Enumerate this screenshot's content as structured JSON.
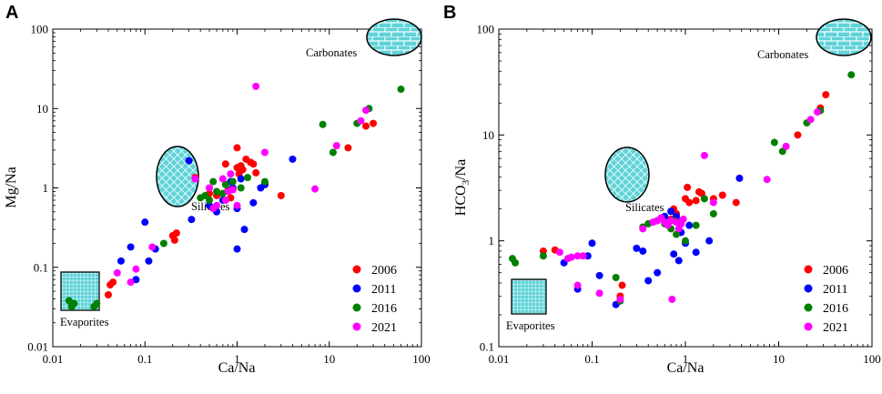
{
  "chart_data": [
    {
      "type": "scatter",
      "panel": "A",
      "xlabel": "Ca/Na",
      "ylabel": "Mg/Na",
      "xscale": "log",
      "yscale": "log",
      "xlim": [
        0.01,
        100
      ],
      "ylim": [
        0.01,
        100
      ],
      "xticks": [
        "0.01",
        "0.1",
        "1",
        "10",
        "100"
      ],
      "yticks": [
        "0.01",
        "0.1",
        "1",
        "10",
        "100"
      ],
      "legend_position": "bottom-right",
      "regions": [
        {
          "label": "Carbonates",
          "shape": "ellipse",
          "x": 60,
          "y": 60
        },
        {
          "label": "Silicates",
          "shape": "ellipse",
          "x": 0.25,
          "y": 1.4
        },
        {
          "label": "Evaporites",
          "shape": "square",
          "x": 0.021,
          "y": 0.045
        }
      ],
      "series": [
        {
          "name": "2006",
          "color": "#ff0000",
          "points": [
            [
              0.04,
              0.045
            ],
            [
              0.042,
              0.06
            ],
            [
              0.045,
              0.065
            ],
            [
              0.2,
              0.25
            ],
            [
              0.21,
              0.22
            ],
            [
              0.22,
              0.27
            ],
            [
              0.35,
              1.35
            ],
            [
              0.5,
              0.85
            ],
            [
              0.6,
              0.8
            ],
            [
              0.75,
              2.0
            ],
            [
              0.8,
              0.95
            ],
            [
              0.85,
              0.75
            ],
            [
              1.0,
              3.2
            ],
            [
              1.0,
              1.8
            ],
            [
              1.05,
              1.5
            ],
            [
              1.1,
              1.9
            ],
            [
              1.15,
              1.7
            ],
            [
              1.25,
              2.3
            ],
            [
              1.4,
              2.1
            ],
            [
              1.5,
              2.0
            ],
            [
              1.6,
              1.55
            ],
            [
              2.0,
              1.1
            ],
            [
              3.0,
              0.8
            ],
            [
              16,
              3.2
            ],
            [
              25,
              6.0
            ],
            [
              30,
              6.5
            ]
          ]
        },
        {
          "name": "2011",
          "color": "#0000ff",
          "points": [
            [
              0.055,
              0.12
            ],
            [
              0.07,
              0.18
            ],
            [
              0.08,
              0.07
            ],
            [
              0.1,
              0.37
            ],
            [
              0.11,
              0.12
            ],
            [
              0.13,
              0.17
            ],
            [
              0.3,
              2.2
            ],
            [
              0.32,
              0.4
            ],
            [
              0.5,
              0.6
            ],
            [
              0.6,
              0.5
            ],
            [
              0.7,
              0.7
            ],
            [
              0.85,
              1.2
            ],
            [
              0.9,
              1.0
            ],
            [
              1.0,
              0.55
            ],
            [
              1.0,
              0.17
            ],
            [
              1.1,
              1.3
            ],
            [
              1.2,
              0.3
            ],
            [
              1.5,
              0.65
            ],
            [
              1.8,
              1.0
            ],
            [
              2.0,
              1.1
            ],
            [
              4.0,
              2.3
            ]
          ]
        },
        {
          "name": "2016",
          "color": "#008000",
          "points": [
            [
              0.015,
              0.038
            ],
            [
              0.016,
              0.032
            ],
            [
              0.017,
              0.035
            ],
            [
              0.028,
              0.032
            ],
            [
              0.03,
              0.035
            ],
            [
              0.16,
              0.2
            ],
            [
              0.4,
              0.75
            ],
            [
              0.45,
              0.8
            ],
            [
              0.5,
              0.7
            ],
            [
              0.55,
              1.2
            ],
            [
              0.6,
              0.9
            ],
            [
              0.7,
              0.85
            ],
            [
              0.75,
              1.1
            ],
            [
              0.9,
              1.2
            ],
            [
              1.1,
              1.0
            ],
            [
              1.3,
              1.35
            ],
            [
              2.0,
              1.2
            ],
            [
              8.5,
              6.3
            ],
            [
              11,
              2.8
            ],
            [
              20,
              6.5
            ],
            [
              27,
              10
            ],
            [
              60,
              17.5
            ]
          ]
        },
        {
          "name": "2021",
          "color": "#ff00ff",
          "points": [
            [
              0.05,
              0.085
            ],
            [
              0.07,
              0.065
            ],
            [
              0.08,
              0.095
            ],
            [
              0.12,
              0.18
            ],
            [
              0.35,
              1.3
            ],
            [
              0.5,
              1.0
            ],
            [
              0.55,
              0.55
            ],
            [
              0.6,
              0.6
            ],
            [
              0.7,
              1.3
            ],
            [
              0.75,
              0.7
            ],
            [
              0.8,
              0.9
            ],
            [
              0.85,
              1.5
            ],
            [
              0.9,
              0.95
            ],
            [
              1.0,
              0.6
            ],
            [
              1.6,
              19
            ],
            [
              2.0,
              2.8
            ],
            [
              7.0,
              0.97
            ],
            [
              12,
              3.4
            ],
            [
              22,
              7.0
            ],
            [
              25,
              9.5
            ]
          ]
        }
      ]
    },
    {
      "type": "scatter",
      "panel": "B",
      "xlabel": "Ca/Na",
      "ylabel": "HCO3/Na",
      "ylabel_main": "HCO",
      "ylabel_sub": "3",
      "ylabel_tail": "/Na",
      "xscale": "log",
      "yscale": "log",
      "xlim": [
        0.01,
        100
      ],
      "ylim": [
        0.1,
        100
      ],
      "xticks": [
        "0.01",
        "0.1",
        "1",
        "10",
        "100"
      ],
      "yticks": [
        "0.1",
        "1",
        "10",
        "100"
      ],
      "legend_position": "bottom-right",
      "regions": [
        {
          "label": "Carbonates",
          "shape": "ellipse",
          "x": 60,
          "y": 60
        },
        {
          "label": "Silicates",
          "shape": "ellipse",
          "x": 0.4,
          "y": 5.0
        },
        {
          "label": "Evaporites",
          "shape": "square",
          "x": 0.023,
          "y": 0.25
        }
      ],
      "series": [
        {
          "name": "2006",
          "color": "#ff0000",
          "points": [
            [
              0.03,
              0.8
            ],
            [
              0.04,
              0.82
            ],
            [
              0.2,
              0.3
            ],
            [
              0.21,
              0.38
            ],
            [
              0.7,
              1.6
            ],
            [
              0.75,
              2.0
            ],
            [
              0.8,
              1.8
            ],
            [
              0.85,
              1.5
            ],
            [
              1.0,
              2.5
            ],
            [
              1.05,
              3.2
            ],
            [
              1.1,
              2.3
            ],
            [
              1.3,
              2.4
            ],
            [
              1.4,
              2.9
            ],
            [
              1.5,
              2.8
            ],
            [
              2.0,
              2.5
            ],
            [
              2.5,
              2.7
            ],
            [
              3.5,
              2.3
            ],
            [
              16,
              10
            ],
            [
              28,
              18
            ],
            [
              32,
              24
            ]
          ]
        },
        {
          "name": "2011",
          "color": "#0000ff",
          "points": [
            [
              0.05,
              0.62
            ],
            [
              0.07,
              0.35
            ],
            [
              0.09,
              0.72
            ],
            [
              0.1,
              0.95
            ],
            [
              0.12,
              0.47
            ],
            [
              0.18,
              0.25
            ],
            [
              0.3,
              0.85
            ],
            [
              0.35,
              0.8
            ],
            [
              0.4,
              0.42
            ],
            [
              0.5,
              0.5
            ],
            [
              0.6,
              1.7
            ],
            [
              0.7,
              1.9
            ],
            [
              0.75,
              0.75
            ],
            [
              0.8,
              1.7
            ],
            [
              0.85,
              0.65
            ],
            [
              0.9,
              1.2
            ],
            [
              1.0,
              0.95
            ],
            [
              1.1,
              1.4
            ],
            [
              1.3,
              0.78
            ],
            [
              1.8,
              1.0
            ],
            [
              3.8,
              3.9
            ]
          ]
        },
        {
          "name": "2016",
          "color": "#008000",
          "points": [
            [
              0.014,
              0.68
            ],
            [
              0.015,
              0.62
            ],
            [
              0.03,
              0.72
            ],
            [
              0.18,
              0.45
            ],
            [
              0.2,
              0.27
            ],
            [
              0.35,
              1.35
            ],
            [
              0.4,
              1.45
            ],
            [
              0.5,
              1.55
            ],
            [
              0.6,
              1.45
            ],
            [
              0.7,
              1.3
            ],
            [
              0.75,
              1.55
            ],
            [
              0.8,
              1.15
            ],
            [
              1.0,
              1.0
            ],
            [
              1.3,
              1.4
            ],
            [
              1.6,
              2.5
            ],
            [
              2.0,
              1.8
            ],
            [
              9.0,
              8.5
            ],
            [
              11,
              7.0
            ],
            [
              20,
              13
            ],
            [
              28,
              17
            ],
            [
              60,
              37
            ]
          ]
        },
        {
          "name": "2021",
          "color": "#ff00ff",
          "points": [
            [
              0.045,
              0.78
            ],
            [
              0.055,
              0.68
            ],
            [
              0.06,
              0.7
            ],
            [
              0.07,
              0.72
            ],
            [
              0.08,
              0.72
            ],
            [
              0.07,
              0.38
            ],
            [
              0.12,
              0.32
            ],
            [
              0.2,
              0.28
            ],
            [
              0.35,
              1.3
            ],
            [
              0.45,
              1.5
            ],
            [
              0.5,
              1.55
            ],
            [
              0.55,
              1.65
            ],
            [
              0.6,
              1.5
            ],
            [
              0.65,
              1.4
            ],
            [
              0.7,
              1.55
            ],
            [
              0.72,
              0.28
            ],
            [
              0.8,
              1.5
            ],
            [
              0.85,
              1.3
            ],
            [
              0.9,
              1.45
            ],
            [
              0.95,
              1.6
            ],
            [
              1.6,
              6.4
            ],
            [
              2.0,
              2.3
            ],
            [
              7.5,
              3.8
            ],
            [
              12,
              7.8
            ],
            [
              22,
              14
            ],
            [
              26,
              16.5
            ]
          ]
        }
      ]
    }
  ],
  "panels": [
    {
      "letter": "A",
      "ylabel": "Mg/Na",
      "xlabel": "Ca/Na",
      "carbonates": "Carbonates",
      "silicates": "Silicates",
      "evaporites": "Evaporites"
    },
    {
      "letter": "B",
      "ylabel_main": "HCO",
      "ylabel_sub": "3",
      "ylabel_tail": "/Na",
      "xlabel": "Ca/Na",
      "carbonates": "Carbonates",
      "silicates": "Silicates",
      "evaporites": "Evaporites"
    }
  ],
  "legend": [
    "2006",
    "2011",
    "2016",
    "2021"
  ],
  "colors": {
    "2006": "#ff0000",
    "2011": "#0000ff",
    "2016": "#008000",
    "2021": "#ff00ff",
    "region_fill": "#5fd3d8",
    "region_line": "#ffffff"
  }
}
